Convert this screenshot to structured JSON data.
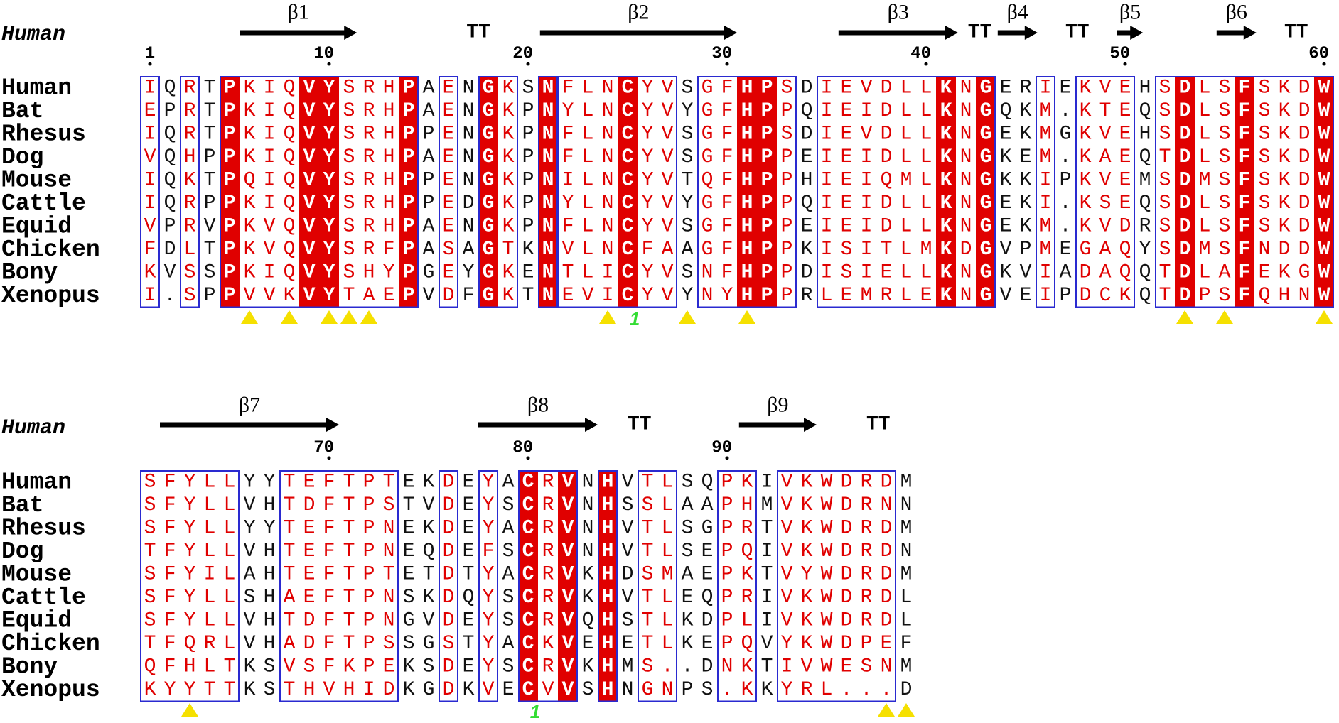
{
  "blocks": [
    {
      "header": "Human",
      "numbers": [
        1,
        10,
        20,
        30,
        40,
        50,
        60
      ],
      "secondary_structure": [
        {
          "label": "β1"
        },
        {
          "label": "TT"
        },
        {
          "label": "β2"
        },
        {
          "label": "β3"
        },
        {
          "label": "TT"
        },
        {
          "label": "β4"
        },
        {
          "label": "TT"
        },
        {
          "label": "β5"
        },
        {
          "label": "β6"
        },
        {
          "label": "TT"
        }
      ],
      "column_style": "rbrbwrrrwwrrrwbrbwrbwRrrwrrbrrwwrbrrrrrrwrwbbrbrrrbrwrrwrrrw",
      "annotations": [
        {
          "label": "1"
        }
      ],
      "rows": [
        {
          "name": "Human",
          "sequence": "IQRTPKIQVYSRHPAENGKSNFLNCYVSGFHPSDIEVDLLKNGERIEKVEHSDLSFSKDW"
        },
        {
          "name": "Bat",
          "sequence": "EPRTPKIQVYSRHPAENGKPNYLNCYVYGFHPPQIEIDLLKNGQKM.KTEQSDLSFSKDW"
        },
        {
          "name": "Rhesus",
          "sequence": "IQRTPKIQVYSRHPPENGKPNFLNCYVSGFHPSDIEVDLLKNGEKMGKVEHSDLSFSKDW"
        },
        {
          "name": "Dog",
          "sequence": "VQHPPKIQVYSRHPAENGKPNFLNCYVSGFHPPEIEIDLLKNGKEM.KAEQTDLSFSKDW"
        },
        {
          "name": "Mouse",
          "sequence": "IQKTPQIQVYSRHPPENGKPNILNCYVTQFHPPHIEIQMLKNGKKIPKVEMSDMSFSKDW"
        },
        {
          "name": "Cattle",
          "sequence": "IQRPPKIQVYSRHPPEDGKPNYLNCYVYGFHPPQIEIDLLKNGEKI.KSEQSDLSFSKDW"
        },
        {
          "name": "Equid",
          "sequence": "VPRVPKVQVYSRHPAENGKPNFLNCYVSGFHPPEIEIDLLKNGEKM.KVDRSDLSFSKDW"
        },
        {
          "name": "Chicken",
          "sequence": "FDLTPKVQVYSRFPASAGTKNVLNCFAAGFHPPKISITLMKDGVPMEGAQYSDMSFNDDW"
        },
        {
          "name": "Bony",
          "sequence": "KVSSPKIQVYSHYPGEYGKENTLICYVSNFHPPDISIELLKNGKVIADAQQTDLAFEKGW"
        },
        {
          "name": "Xenopus",
          "sequence": "I.SPPVVKVYTAEPVDFGKTNEVICYVYNYHPPRLEMRLEKNGVEIPDCKQTDPSFQHNW"
        }
      ]
    },
    {
      "header": "Human",
      "numbers": [
        70,
        80,
        90
      ],
      "secondary_structure": [
        {
          "label": "β7"
        },
        {
          "label": "β8"
        },
        {
          "label": "TT"
        },
        {
          "label": "β9"
        },
        {
          "label": "TT"
        }
      ],
      "column_style": "rrrrrbbrrrrrrbbrbrbwrwbwbrrbbrrbrrrrrrb",
      "annotations": [
        {
          "label": "1"
        }
      ],
      "rows": [
        {
          "name": "Human",
          "sequence": "SFYLLYYTEFTPTEKDEYACRVNHVTLSQPKIVKWDRDM"
        },
        {
          "name": "Bat",
          "sequence": "SFYLLVHTDFTPSTVDEYSCRVNHSSLAAPHMVKWDRNN"
        },
        {
          "name": "Rhesus",
          "sequence": "SFYLLYYTEFTPNEKDEYACRVNHVTLSGPRTVKWDRDM"
        },
        {
          "name": "Dog",
          "sequence": "TFYLLVHTEFTPNEQDEFSCRVNHVTLSEPQIVKWDRDN"
        },
        {
          "name": "Mouse",
          "sequence": "SFYILAHTEFTPTETDTYACRVKHDSMAEPKTVYWDRDM"
        },
        {
          "name": "Cattle",
          "sequence": "SFYLLSHAEFTPNSKDQYSCRVKHVTLEQPRIVKWDRDL"
        },
        {
          "name": "Equid",
          "sequence": "SFYLLVHTDFTPNGVDEYSCRVQHSTLKDPLIVKWDRDL"
        },
        {
          "name": "Chicken",
          "sequence": "TFQRLVHADFTPSSGSTYACKVEHETLKEPQVYKWDPEF"
        },
        {
          "name": "Bony",
          "sequence": "QFHLTKSVSFKPEKSDEYSCRVKHMS..DNKTIVWESNM"
        },
        {
          "name": "Xenopus",
          "sequence": "KYYTTKSTHVHIDKGDKVECVVSHNGNPS.KKYRL...D"
        }
      ]
    }
  ]
}
